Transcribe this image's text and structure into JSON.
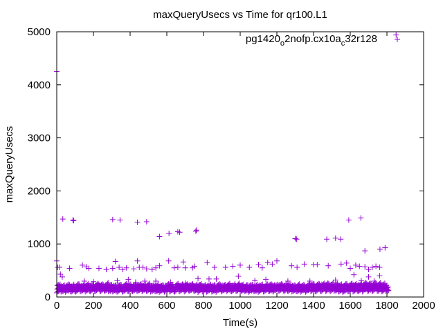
{
  "chart_data": {
    "type": "scatter",
    "title": "maxQueryUsecs vs Time for qr100.L1",
    "xlabel": "Time(s)",
    "ylabel": "maxQueryUsecs",
    "xlim": [
      0,
      2000
    ],
    "ylim": [
      0,
      5000
    ],
    "xticks": [
      "0",
      "200",
      "400",
      "600",
      "800",
      "1000",
      "1200",
      "1400",
      "1600",
      "1800",
      "2000"
    ],
    "yticks": [
      "0",
      "1000",
      "2000",
      "3000",
      "4000",
      "5000"
    ],
    "legend_position": "top-right",
    "series": [
      {
        "name": "pg1420_o2nofp.cx10a_c32r128",
        "name_parts": [
          "pg1420",
          "o",
          "2nofp.cx10a",
          "c",
          "32r128"
        ],
        "color": "#9400d3",
        "marker": "plus",
        "outliers": [
          [
            0,
            4250
          ],
          [
            1850,
            4940
          ],
          [
            33,
            1470
          ],
          [
            88,
            1450
          ],
          [
            92,
            1440
          ],
          [
            305,
            1460
          ],
          [
            345,
            1450
          ],
          [
            440,
            1410
          ],
          [
            490,
            1420
          ],
          [
            560,
            1140
          ],
          [
            612,
            1200
          ],
          [
            660,
            1230
          ],
          [
            670,
            1220
          ],
          [
            758,
            1240
          ],
          [
            762,
            1260
          ],
          [
            1300,
            1100
          ],
          [
            1308,
            1090
          ],
          [
            1472,
            1090
          ],
          [
            1520,
            1110
          ],
          [
            1548,
            1090
          ],
          [
            1592,
            1450
          ],
          [
            1658,
            1490
          ],
          [
            1680,
            870
          ],
          [
            1762,
            900
          ],
          [
            1790,
            930
          ],
          [
            0,
            680
          ],
          [
            5,
            560
          ],
          [
            15,
            560
          ],
          [
            20,
            430
          ],
          [
            30,
            380
          ],
          [
            70,
            540
          ],
          [
            140,
            600
          ],
          [
            160,
            570
          ],
          [
            175,
            540
          ],
          [
            230,
            540
          ],
          [
            270,
            520
          ],
          [
            305,
            540
          ],
          [
            320,
            670
          ],
          [
            340,
            560
          ],
          [
            360,
            520
          ],
          [
            380,
            550
          ],
          [
            420,
            530
          ],
          [
            440,
            680
          ],
          [
            450,
            560
          ],
          [
            470,
            560
          ],
          [
            490,
            530
          ],
          [
            520,
            520
          ],
          [
            540,
            550
          ],
          [
            560,
            590
          ],
          [
            610,
            680
          ],
          [
            640,
            550
          ],
          [
            660,
            560
          ],
          [
            690,
            660
          ],
          [
            700,
            550
          ],
          [
            740,
            550
          ],
          [
            750,
            580
          ],
          [
            820,
            650
          ],
          [
            860,
            560
          ],
          [
            920,
            560
          ],
          [
            960,
            580
          ],
          [
            1000,
            600
          ],
          [
            1050,
            560
          ],
          [
            1100,
            610
          ],
          [
            1120,
            550
          ],
          [
            1150,
            650
          ],
          [
            1175,
            620
          ],
          [
            1200,
            680
          ],
          [
            1280,
            590
          ],
          [
            1310,
            560
          ],
          [
            1350,
            620
          ],
          [
            1400,
            610
          ],
          [
            1420,
            610
          ],
          [
            1480,
            590
          ],
          [
            1550,
            620
          ],
          [
            1580,
            640
          ],
          [
            1600,
            540
          ],
          [
            1630,
            600
          ],
          [
            1650,
            580
          ],
          [
            1680,
            570
          ],
          [
            1700,
            520
          ],
          [
            1720,
            560
          ],
          [
            1740,
            580
          ],
          [
            1760,
            560
          ],
          [
            150,
            300
          ],
          [
            200,
            290
          ],
          [
            280,
            270
          ],
          [
            330,
            310
          ],
          [
            390,
            330
          ],
          [
            430,
            280
          ],
          [
            480,
            300
          ],
          [
            540,
            300
          ],
          [
            620,
            280
          ],
          [
            700,
            260
          ],
          [
            770,
            350
          ],
          [
            830,
            340
          ],
          [
            870,
            340
          ],
          [
            990,
            390
          ],
          [
            1080,
            310
          ],
          [
            1140,
            330
          ],
          [
            1260,
            300
          ],
          [
            1380,
            300
          ],
          [
            1420,
            230
          ],
          [
            1520,
            320
          ],
          [
            1570,
            210
          ],
          [
            1620,
            420
          ],
          [
            1660,
            310
          ],
          [
            1700,
            380
          ],
          [
            1730,
            300
          ],
          [
            1760,
            400
          ],
          [
            1800,
            190
          ]
        ],
        "band_step": 10,
        "band_low": [
          80,
          90,
          100,
          85,
          95,
          110,
          90,
          100,
          95,
          105,
          90,
          100,
          110,
          95,
          100,
          90,
          105,
          100,
          95,
          110,
          100,
          95,
          105,
          100,
          90,
          110,
          95,
          100,
          105,
          90,
          100,
          110,
          95,
          100,
          105,
          95,
          100,
          90,
          105,
          100,
          110,
          95,
          100,
          105,
          95,
          100,
          90,
          110,
          100,
          95,
          105,
          100,
          95,
          110,
          100,
          90,
          105,
          100,
          95,
          110,
          100,
          95,
          105,
          100,
          90,
          110,
          95,
          100,
          105,
          90,
          100,
          110,
          95,
          100,
          105,
          95,
          100,
          90,
          105,
          100,
          110,
          95,
          100,
          105,
          95,
          100,
          90,
          110,
          100,
          95,
          105,
          100,
          95,
          110,
          100,
          90,
          105,
          100,
          95,
          110,
          100,
          95,
          105,
          100,
          90,
          110,
          95,
          100,
          105,
          90,
          100,
          110,
          95,
          100,
          105,
          95,
          100,
          90,
          105,
          100,
          110,
          95,
          100,
          105,
          95,
          100,
          90,
          110,
          100,
          95,
          105,
          100,
          95,
          110,
          100,
          90,
          105,
          100,
          95,
          110,
          100,
          95,
          105,
          100,
          90,
          110,
          95,
          100,
          105,
          90,
          100,
          110,
          95,
          100,
          105,
          95,
          100,
          90,
          105,
          100,
          110,
          95,
          100,
          105,
          95,
          100,
          90,
          110,
          100,
          95,
          105,
          100,
          95,
          110,
          100,
          90,
          105,
          100,
          95,
          110,
          100
        ],
        "band_high": [
          260,
          240,
          250,
          230,
          240,
          250,
          260,
          240,
          230,
          250,
          240,
          260,
          250,
          240,
          230,
          250,
          240,
          260,
          250,
          240,
          230,
          250,
          260,
          240,
          250,
          230,
          240,
          250,
          260,
          240,
          250,
          230,
          240,
          260,
          250,
          240,
          230,
          250,
          260,
          240,
          250,
          240,
          230,
          250,
          260,
          240,
          250,
          230,
          240,
          250,
          260,
          240,
          230,
          250,
          240,
          260,
          250,
          240,
          230,
          250,
          240,
          260,
          250,
          240,
          230,
          250,
          260,
          240,
          250,
          230,
          240,
          250,
          260,
          240,
          250,
          230,
          240,
          260,
          250,
          240,
          230,
          250,
          260,
          240,
          250,
          240,
          230,
          250,
          260,
          240,
          250,
          230,
          240,
          250,
          260,
          240,
          230,
          250,
          240,
          260,
          250,
          240,
          230,
          250,
          240,
          260,
          250,
          240,
          230,
          250,
          260,
          240,
          250,
          230,
          240,
          250,
          260,
          240,
          250,
          230,
          240,
          260,
          250,
          240,
          230,
          250,
          260,
          240,
          250,
          240,
          230,
          250,
          260,
          240,
          250,
          230,
          240,
          250,
          270,
          260,
          250,
          240,
          260,
          250,
          270,
          250,
          260,
          270,
          250,
          260,
          270,
          250,
          260,
          270,
          250,
          260,
          250,
          270,
          260,
          250,
          260,
          270,
          250,
          260,
          270,
          250,
          260,
          270,
          280,
          260,
          270,
          250,
          260,
          270,
          250,
          260,
          270,
          250,
          260,
          250,
          200
        ]
      }
    ]
  }
}
